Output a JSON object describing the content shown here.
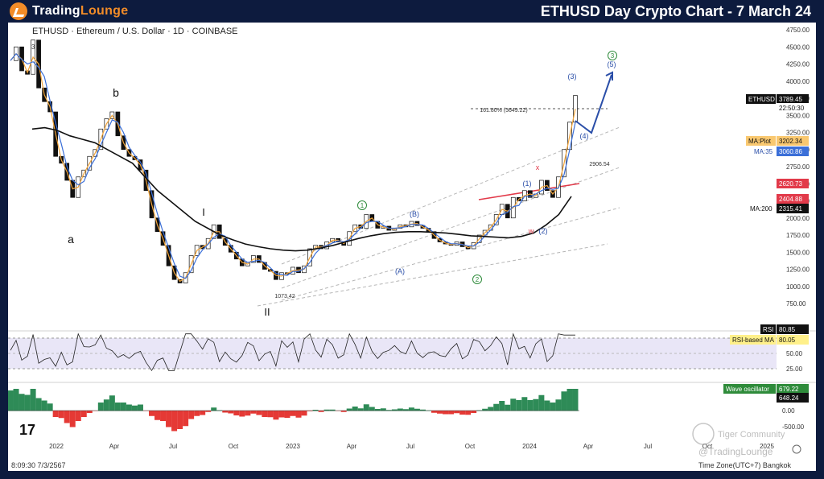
{
  "header": {
    "logo_text_1": "Trading",
    "logo_text_2": "Lounge",
    "title": "ETHUSD Day Crypto Chart - 7 March 24"
  },
  "chart_data": {
    "type": "line",
    "symbol_line": "ETHUSD · Ethereum / U.S. Dollar · 1D · COINBASE",
    "price_axis": {
      "ticks": [
        "4750.00",
        "4500.00",
        "4250.00",
        "4000.00",
        "3750.00",
        "3500.00",
        "3250.00",
        "3000.00",
        "2750.00",
        "2500.00",
        "2250.00",
        "2000.00",
        "1750.00",
        "1500.00",
        "1250.00",
        "1000.00",
        "750.00"
      ],
      "ylim": [
        750,
        4750
      ]
    },
    "rsi_axis": {
      "ticks": [
        "75.00",
        "50.00",
        "25.00"
      ]
    },
    "osc_axis": {
      "ticks": [
        "0.00",
        "-500.00"
      ]
    },
    "x_ticks": [
      "2022",
      "Apr",
      "Jul",
      "Oct",
      "2023",
      "Apr",
      "Jul",
      "Oct",
      "2024",
      "Apr",
      "Jul",
      "Oct",
      "2025"
    ],
    "price_series": [
      4300,
      4500,
      4150,
      4100,
      4600,
      3900,
      3700,
      3550,
      2900,
      2800,
      2550,
      2300,
      2600,
      2700,
      2900,
      3000,
      3300,
      3450,
      3550,
      3200,
      3000,
      2900,
      2850,
      2700,
      2400,
      2000,
      1800,
      1600,
      1300,
      1100,
      1050,
      1200,
      1450,
      1600,
      1550,
      1700,
      1900,
      1700,
      1600,
      1500,
      1400,
      1300,
      1350,
      1450,
      1350,
      1250,
      1220,
      1100,
      1200,
      1180,
      1280,
      1200,
      1300,
      1550,
      1600,
      1550,
      1650,
      1700,
      1650,
      1600,
      1800,
      1900,
      1850,
      2050,
      1950,
      1850,
      1880,
      1820,
      1850,
      1900,
      1870,
      1950,
      1890,
      1850,
      1800,
      1700,
      1650,
      1620,
      1600,
      1650,
      1580,
      1550,
      1640,
      1750,
      1820,
      1900,
      2050,
      2200,
      2000,
      2300,
      2250,
      2400,
      2300,
      2350,
      2550,
      2400,
      2300,
      2600,
      3000,
      3400,
      3789.45
    ],
    "ma200_series": [
      3300,
      3320,
      3280,
      3200,
      3150,
      3100,
      3000,
      2900,
      2800,
      2600,
      2400,
      2250,
      2100,
      1950,
      1850,
      1750,
      1680,
      1620,
      1580,
      1550,
      1530,
      1520,
      1530,
      1560,
      1600,
      1650,
      1700,
      1740,
      1770,
      1790,
      1800,
      1800,
      1790,
      1780,
      1760,
      1740,
      1730,
      1720,
      1710,
      1730,
      1780,
      1900,
      2050,
      2315.41
    ],
    "values": {
      "ETHUSD": "3789.45",
      "countdown": "22:50:30",
      "MA_Plot": "3202.34",
      "MA_35": "3060.86",
      "red_line": "2620.73",
      "level_2": "2404.88",
      "MA_200": "2315.41",
      "RSI": "80.85",
      "RSI_MA": "80.05",
      "Wave_osc": "679.22",
      "Wave_osc_2": "648.24"
    },
    "labels": {
      "ma_plot": "MA:Plot",
      "ma35": "MA:35",
      "ma200": "MA:200",
      "rsi": "RSI",
      "rsi_ma": "RSI-based MA",
      "wave_osc": "Wave oscillator",
      "ethusd": "ETHUSD"
    },
    "annotations": {
      "a": "a",
      "b": "b",
      "I": "I",
      "II": "II",
      "c1": "1",
      "c2": "2",
      "c3": "3",
      "w3": "(3)",
      "w5": "(5)",
      "w4": "(4)",
      "w1": "(1)",
      "w2": "(2)",
      "A": "(A)",
      "B": "(B)",
      "x": "x",
      "w": "w",
      "fib": "161.80% (3649.22)",
      "low": "1073.42",
      "level_2906": "2906.54",
      "three": "3"
    },
    "colors": {
      "accent": "#f28c28",
      "header": "#0d1b3e",
      "ma200": "#111111",
      "ma35": "#3b6fd8",
      "maplot": "#f2a43a",
      "red_line": "#e23a4a",
      "up": "#2e8b57",
      "down": "#e53935",
      "wave_blue": "#2a4ea8",
      "green": "#2e8b3a"
    }
  },
  "footer": {
    "time": "8:09:30 7/3/2567",
    "tz": "Time Zone(UTC+7) Bangkok",
    "watermark_1": "@TradingLounge",
    "watermark_2": "Tiger Community"
  }
}
